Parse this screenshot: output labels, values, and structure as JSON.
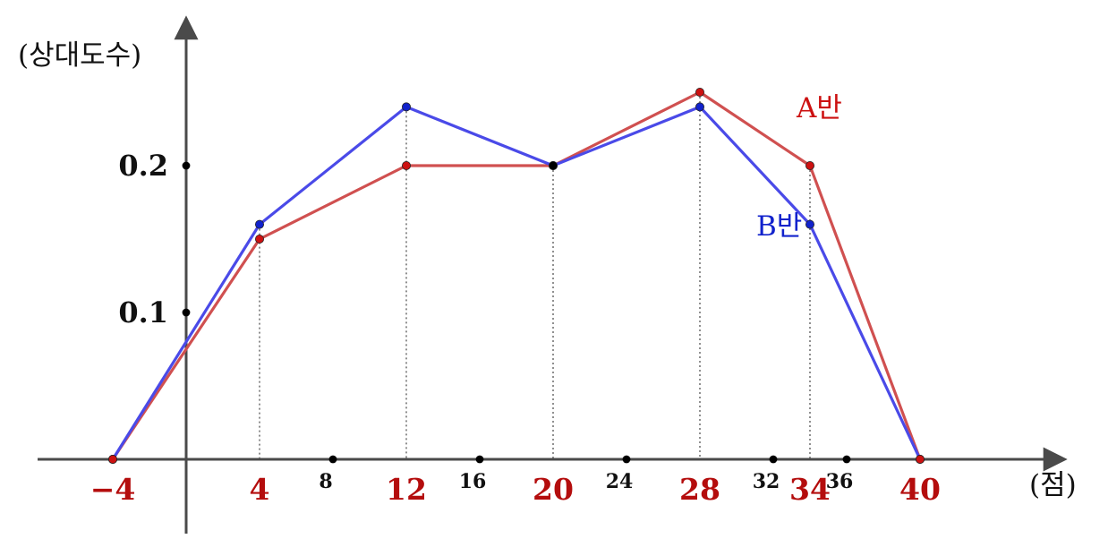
{
  "chart_data": {
    "type": "line",
    "ylabel": "(상대도수)",
    "xlabel": "(점)",
    "xlim": [
      -4,
      40
    ],
    "ylim": [
      0,
      0.25
    ],
    "grid": false,
    "x_ticks_main": [
      -4,
      4,
      12,
      20,
      28,
      34,
      40
    ],
    "x_ticks_main_labels": [
      "−4",
      "4",
      "12",
      "20",
      "28",
      "34",
      "40"
    ],
    "x_ticks_minor": [
      8,
      16,
      24,
      32,
      36
    ],
    "x_ticks_minor_labels": [
      "8",
      "16",
      "24",
      "32",
      "36"
    ],
    "y_ticks": [
      0.1,
      0.2
    ],
    "y_tick_labels": [
      "0.1",
      "0.2"
    ],
    "x": [
      -4,
      4,
      12,
      20,
      28,
      34,
      40
    ],
    "series": [
      {
        "name": "A반",
        "color": "#d05050",
        "values": [
          0,
          0.15,
          0.2,
          0.2,
          0.25,
          0.2,
          0
        ]
      },
      {
        "name": "B반",
        "color": "#4a4ae8",
        "values": [
          0,
          0.16,
          0.24,
          0.2,
          0.24,
          0.16,
          0
        ]
      }
    ],
    "marker_colors": {
      "A": "#cc1111",
      "B": "#1122cc",
      "axis": "#000000"
    }
  }
}
